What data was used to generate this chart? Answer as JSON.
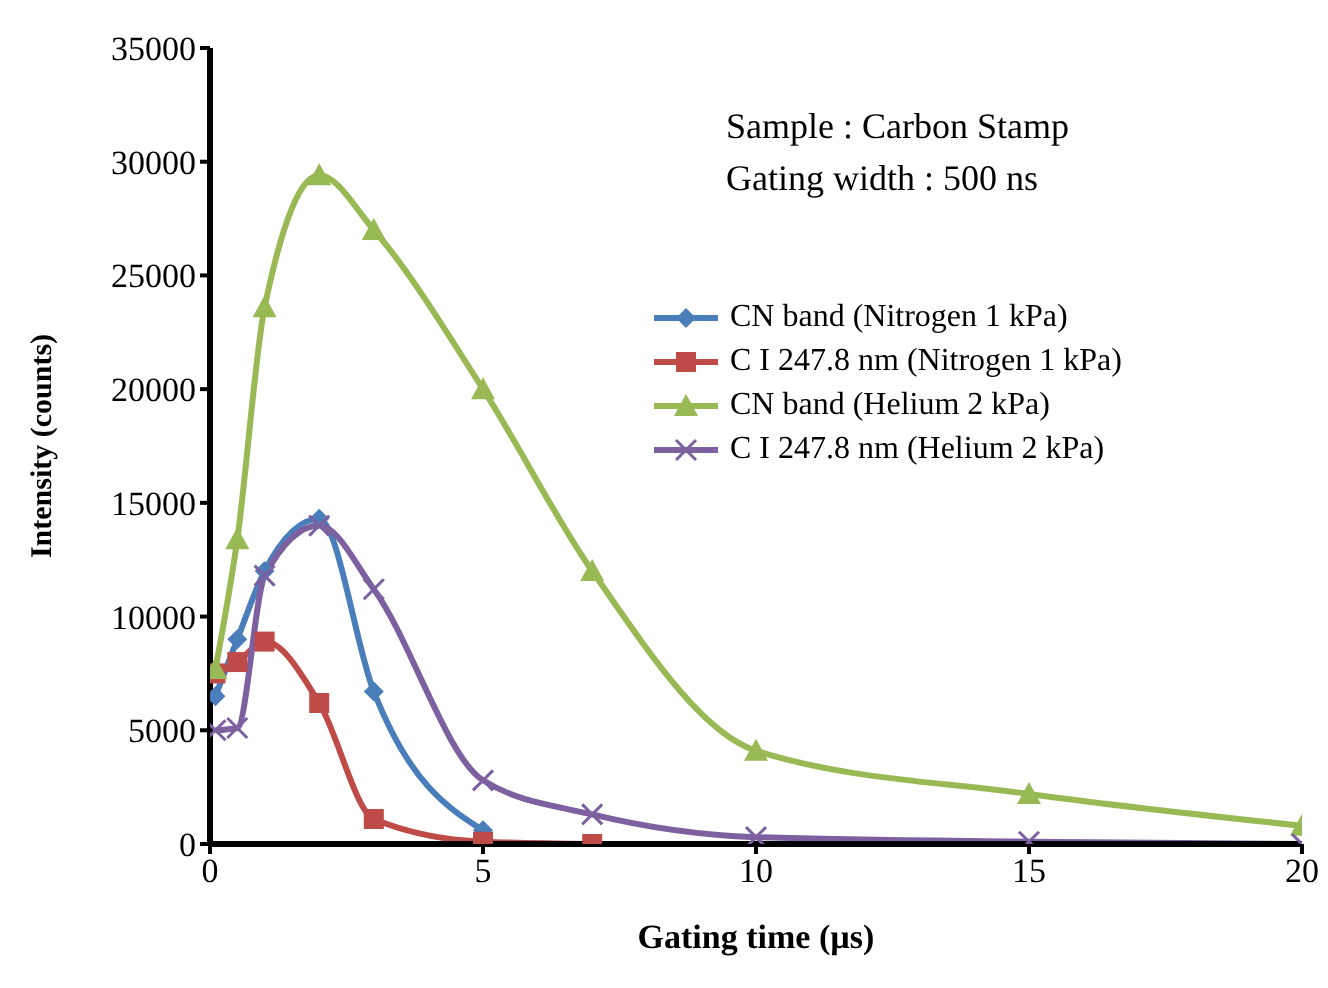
{
  "chart_data": {
    "type": "line",
    "xlabel": "Gating time (µs)",
    "ylabel": "Intensity (counts)",
    "annotations": [
      "Sample : Carbon Stamp",
      "Gating width : 500 ns"
    ],
    "series": [
      {
        "name": "CN band (Nitrogen 1 kPa)",
        "color": "#4a7ebb",
        "marker": "diamond",
        "x": [
          0.1,
          0.5,
          1,
          2,
          3,
          5
        ],
        "values": [
          6500,
          9000,
          12000,
          14300,
          6700,
          600
        ]
      },
      {
        "name": "C I 247.8 nm (Nitrogen 1 kPa)",
        "color": "#be4b48",
        "marker": "square",
        "x": [
          0.1,
          0.5,
          1,
          2,
          3,
          5,
          7
        ],
        "values": [
          7500,
          8000,
          8900,
          6200,
          1100,
          100,
          0
        ]
      },
      {
        "name": "CN band (Helium 2 kPa)",
        "color": "#98b954",
        "marker": "triangle",
        "x": [
          0.1,
          0.5,
          1,
          2,
          3,
          5,
          7,
          10,
          15,
          20
        ],
        "values": [
          7700,
          13400,
          23600,
          29400,
          27000,
          20000,
          12000,
          4100,
          2200,
          800
        ]
      },
      {
        "name": "C I 247.8 nm (Helium 2 kPa)",
        "color": "#7d60a0",
        "marker": "cross",
        "x": [
          0.1,
          0.5,
          1,
          2,
          3,
          5,
          7,
          10,
          15,
          20
        ],
        "values": [
          5000,
          5100,
          11800,
          14000,
          11200,
          2800,
          1300,
          300,
          100,
          0
        ]
      }
    ],
    "xlim": [
      0,
      20
    ],
    "xticks": [
      0,
      5,
      10,
      15,
      20
    ],
    "ylim": [
      0,
      35000
    ],
    "yticks": [
      0,
      5000,
      10000,
      15000,
      20000,
      25000,
      30000,
      35000
    ],
    "grid": false,
    "legend": "right"
  }
}
